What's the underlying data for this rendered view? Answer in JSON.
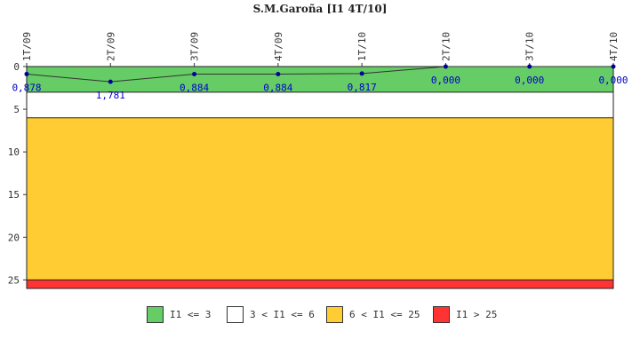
{
  "chart_data": {
    "type": "line",
    "title": "S.M.Garoña [I1 4T/10]",
    "categories": [
      "1T/09",
      "2T/09",
      "3T/09",
      "4T/09",
      "1T/10",
      "2T/10",
      "3T/10",
      "4T/10"
    ],
    "values": [
      0.878,
      1.781,
      0.884,
      0.884,
      0.817,
      0.0,
      0.0,
      0.0
    ],
    "value_labels": [
      "0,878",
      "1,781",
      "0,884",
      "0,884",
      "0,817",
      "0,000",
      "0,000",
      "0,000"
    ],
    "ylim": [
      0,
      26
    ],
    "y_inverted": true,
    "y_ticks": [
      0,
      5,
      10,
      15,
      20,
      25
    ],
    "bands": [
      {
        "from": 0,
        "to": 3,
        "color": "#66cc66",
        "label": "I1 <= 3"
      },
      {
        "from": 3,
        "to": 6,
        "color": "#ffffff",
        "label": "3 < I1 <= 6"
      },
      {
        "from": 6,
        "to": 25,
        "color": "#ffcc33",
        "label": "6 < I1 <= 25"
      },
      {
        "from": 25,
        "to": 26,
        "color": "#ff3333",
        "label": "I1 > 25"
      }
    ],
    "line_color": "#333333",
    "point_color": "#000099",
    "label_color": "#0000cc"
  }
}
